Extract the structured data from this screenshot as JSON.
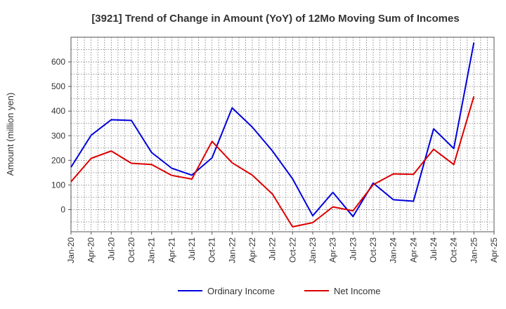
{
  "chart_data": {
    "type": "line",
    "title": "[3921]  Trend of Change in Amount (YoY) of 12Mo Moving Sum of Incomes",
    "xlabel": "",
    "ylabel": "Amount (million yen)",
    "ylim": [
      -90,
      700
    ],
    "yticks": [
      0,
      100,
      200,
      300,
      400,
      500,
      600
    ],
    "x_ticks": [
      "Jan-20",
      "Apr-20",
      "Jul-20",
      "Oct-20",
      "Jan-21",
      "Apr-21",
      "Jul-21",
      "Oct-21",
      "Jan-22",
      "Apr-22",
      "Jul-22",
      "Oct-22",
      "Jan-23",
      "Apr-23",
      "Jul-23",
      "Oct-23",
      "Jan-24",
      "Apr-24",
      "Jul-24",
      "Oct-24",
      "Jan-25",
      "Apr-25"
    ],
    "x": [
      "Jan-20",
      "Apr-20",
      "Jul-20",
      "Oct-20",
      "Jan-21",
      "Apr-21",
      "Jul-21",
      "Oct-21",
      "Jan-22",
      "Apr-22",
      "Jul-22",
      "Oct-22",
      "Jan-23",
      "Apr-23",
      "Jul-23",
      "Oct-23",
      "Jan-24",
      "Apr-24",
      "Jul-24",
      "Oct-24",
      "Jan-25"
    ],
    "grid": true,
    "legend_position": "bottom",
    "series": [
      {
        "name": "Ordinary Income",
        "color": "#0000dd",
        "values": [
          172,
          302,
          365,
          362,
          232,
          168,
          140,
          210,
          413,
          335,
          238,
          125,
          -25,
          70,
          -28,
          108,
          40,
          34,
          328,
          248,
          678
        ]
      },
      {
        "name": "Net Income",
        "color": "#dd0000",
        "values": [
          113,
          208,
          238,
          188,
          183,
          139,
          124,
          277,
          190,
          140,
          63,
          -70,
          -53,
          11,
          -5,
          101,
          145,
          143,
          245,
          183,
          460
        ]
      }
    ]
  }
}
